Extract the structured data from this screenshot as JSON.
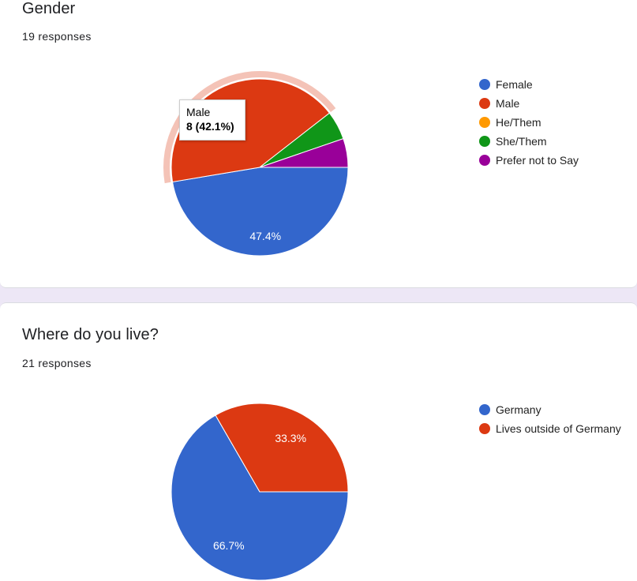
{
  "questions": [
    {
      "title": "Gender",
      "responses": "19 responses",
      "tooltip": {
        "label": "Male",
        "value": "8 (42.1%)"
      }
    },
    {
      "title": "Where do you live?",
      "responses": "21 responses"
    }
  ],
  "chart_data": [
    {
      "type": "pie",
      "title": "Gender",
      "categories": [
        "Female",
        "Male",
        "He/Them",
        "She/Them",
        "Prefer not to Say"
      ],
      "values": [
        9,
        8,
        0,
        1,
        1
      ],
      "slice_labels": [
        "47.4%",
        "",
        "",
        "",
        ""
      ],
      "colors": [
        "#3366cc",
        "#dc3912",
        "#ff9900",
        "#109618",
        "#990099"
      ],
      "highlighted": "Male",
      "legend": "right"
    },
    {
      "type": "pie",
      "title": "Where do you live?",
      "categories": [
        "Germany",
        "Lives outside of Germany"
      ],
      "values": [
        14,
        7
      ],
      "slice_labels": [
        "66.7%",
        "33.3%"
      ],
      "colors": [
        "#3366cc",
        "#dc3912"
      ],
      "legend": "right"
    }
  ]
}
